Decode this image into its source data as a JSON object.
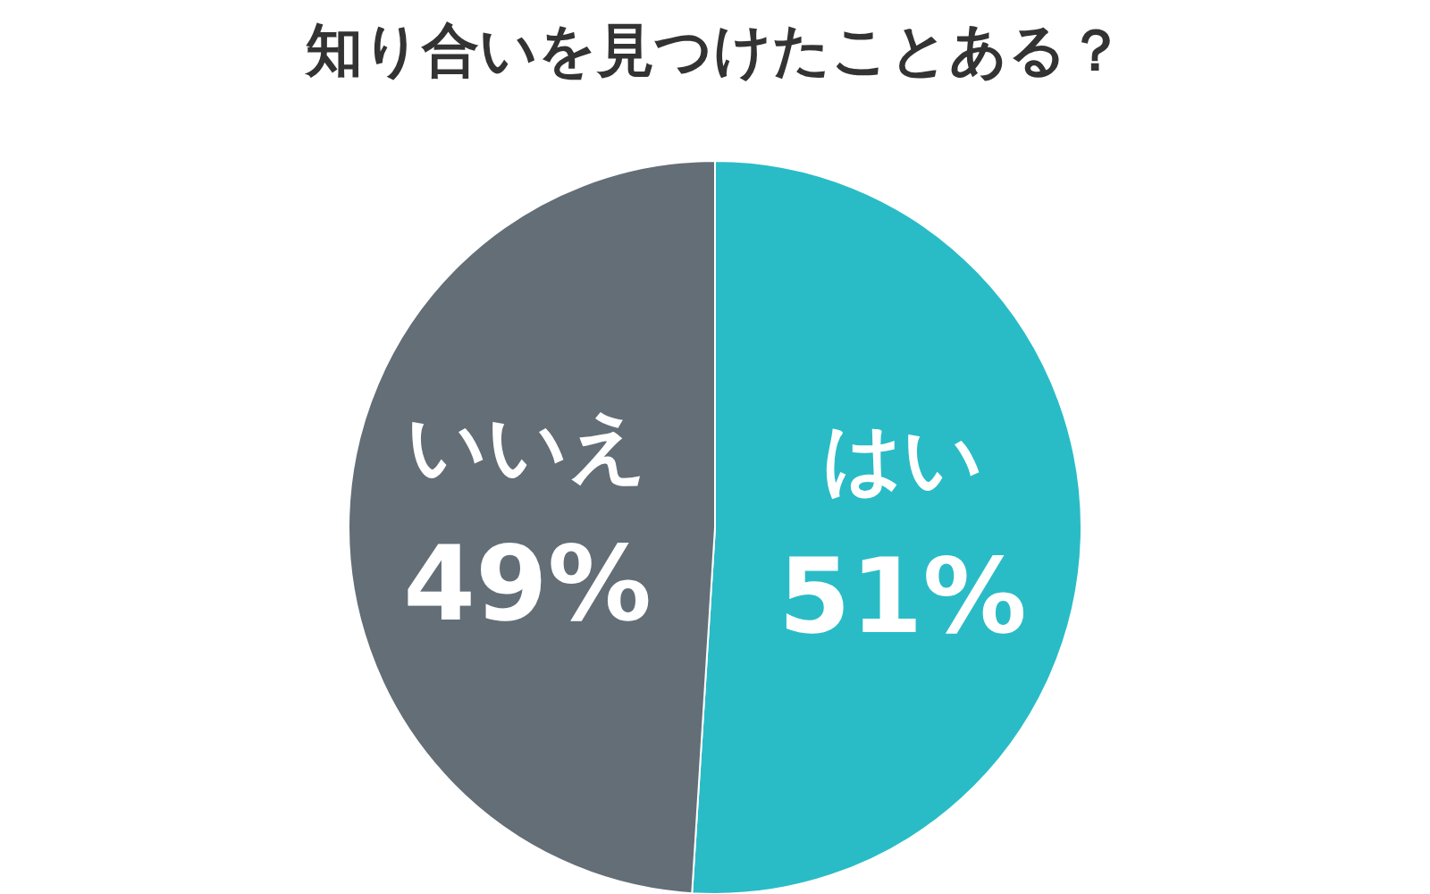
{
  "chart_data": {
    "type": "pie",
    "title": "知り合いを見つけたことある？",
    "categories": [
      "はい",
      "いいえ"
    ],
    "values": [
      51,
      49
    ],
    "colors": [
      "#29bcc6",
      "#636e77"
    ],
    "value_labels": [
      "51%",
      "49%"
    ],
    "legend": false
  }
}
